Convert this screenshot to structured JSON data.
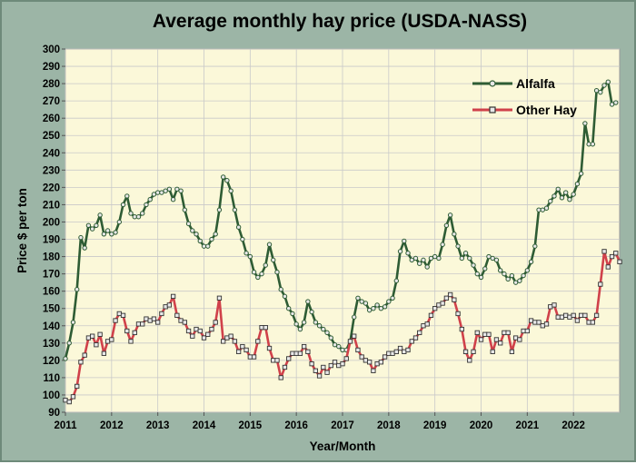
{
  "chart_data": {
    "type": "line",
    "title": "Average monthly hay price (USDA-NASS)",
    "xlabel": "Year/Month",
    "ylabel": "Price $ per ton",
    "ylim": [
      90,
      300
    ],
    "yticks": [
      90,
      100,
      110,
      120,
      130,
      140,
      150,
      160,
      170,
      180,
      190,
      200,
      210,
      220,
      230,
      240,
      250,
      260,
      270,
      280,
      290,
      300
    ],
    "xlim": [
      2011.0,
      2023.0
    ],
    "xticks": [
      "2011",
      "2012",
      "2013",
      "2014",
      "2015",
      "2016",
      "2017",
      "2018",
      "2019",
      "2020",
      "2021",
      "2022"
    ],
    "grid": true,
    "legend_position": "top-right",
    "colors": {
      "plot_bg": "#fbf8d9",
      "frame_bg": "#9cb5a6",
      "alfalfa": "#2e5c34",
      "other_hay": "#d0414a",
      "marker_fill": "#e8e8e8"
    },
    "series": [
      {
        "name": "Alfalfa",
        "start": "2011-01",
        "values": [
          121,
          130,
          142,
          161,
          191,
          185,
          198,
          196,
          198,
          204,
          193,
          195,
          193,
          194,
          200,
          210,
          215,
          205,
          203,
          203,
          205,
          210,
          213,
          216,
          217,
          217,
          218,
          219,
          213,
          219,
          218,
          207,
          199,
          195,
          193,
          189,
          186,
          186,
          190,
          193,
          207,
          226,
          224,
          218,
          207,
          197,
          190,
          182,
          180,
          171,
          168,
          170,
          175,
          187,
          178,
          171,
          161,
          157,
          150,
          147,
          141,
          138,
          142,
          154,
          148,
          142,
          140,
          138,
          136,
          133,
          129,
          128,
          126,
          126,
          131,
          145,
          156,
          154,
          153,
          149,
          150,
          152,
          150,
          151,
          154,
          156,
          166,
          183,
          189,
          182,
          178,
          179,
          176,
          178,
          174,
          179,
          180,
          179,
          187,
          198,
          204,
          193,
          186,
          179,
          182,
          179,
          175,
          170,
          168,
          173,
          180,
          179,
          178,
          172,
          170,
          167,
          169,
          165,
          166,
          169,
          172,
          177,
          186,
          207,
          207,
          208,
          212,
          215,
          219,
          214,
          217,
          213,
          216,
          222,
          228,
          257,
          245,
          245,
          276,
          275,
          279,
          281,
          268,
          269
        ]
      },
      {
        "name": "Other Hay",
        "start": "2011-01",
        "values": [
          97,
          96,
          99,
          105,
          119,
          123,
          133,
          134,
          129,
          135,
          124,
          131,
          132,
          143,
          147,
          146,
          137,
          131,
          136,
          141,
          141,
          144,
          143,
          144,
          142,
          147,
          151,
          152,
          157,
          146,
          143,
          142,
          137,
          134,
          138,
          137,
          133,
          135,
          138,
          142,
          156,
          131,
          133,
          134,
          131,
          125,
          128,
          126,
          122,
          122,
          131,
          139,
          139,
          127,
          120,
          120,
          110,
          116,
          121,
          124,
          124,
          124,
          128,
          125,
          118,
          114,
          111,
          116,
          113,
          117,
          119,
          117,
          118,
          121,
          131,
          134,
          126,
          122,
          120,
          119,
          114,
          118,
          119,
          122,
          124,
          124,
          125,
          127,
          125,
          126,
          131,
          133,
          136,
          140,
          141,
          146,
          150,
          152,
          153,
          156,
          158,
          155,
          147,
          138,
          125,
          120,
          125,
          136,
          132,
          135,
          135,
          125,
          132,
          130,
          136,
          136,
          125,
          133,
          132,
          137,
          137,
          143,
          142,
          142,
          140,
          141,
          151,
          152,
          145,
          145,
          146,
          145,
          146,
          143,
          146,
          146,
          142,
          142,
          146,
          164,
          183,
          174,
          180,
          182,
          177
        ]
      }
    ]
  }
}
